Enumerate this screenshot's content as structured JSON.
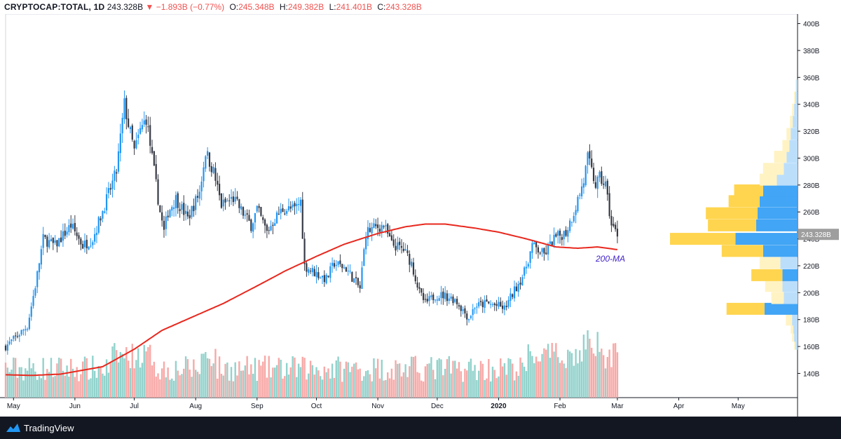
{
  "header": {
    "symbol": "CRYPTOCAP:TOTAL, 1D",
    "last": "243.328B",
    "arrow": "▼",
    "change": "−1.893B (−0.77%)",
    "o_label": "O:",
    "o": "245.348B",
    "h_label": "H:",
    "h": "249.382B",
    "l_label": "L:",
    "l": "241.401B",
    "c_label": "C:",
    "c": "243.328B"
  },
  "footer": {
    "brand": "TradingView",
    "logo": "tradingview-logo-icon"
  },
  "colors": {
    "up": "#2196f3",
    "down": "#363a45",
    "ma": "#e8281e",
    "vol_up": "#92d2cc",
    "vol_down": "#f7a9a7",
    "vp_up": "#42a5f5",
    "vp_down": "#ffd54f",
    "vp_up_light": "#bbdefb",
    "vp_down_light": "#fff3c4",
    "price_tag": "#9e9e9e"
  },
  "chart_data": {
    "type": "candlestick",
    "y_unit": "B",
    "ylim": [
      122,
      405
    ],
    "yticks": [
      "140B",
      "160B",
      "180B",
      "200B",
      "220B",
      "240B",
      "260B",
      "280B",
      "300B",
      "320B",
      "340B",
      "360B",
      "380B",
      "400B"
    ],
    "xticks": [
      "May",
      "Jun",
      "Jul",
      "Aug",
      "Sep",
      "Oct",
      "Nov",
      "Dec",
      "2020",
      "Feb",
      "Mar",
      "Apr",
      "May"
    ],
    "x_range": [
      "2019-04-27",
      "2020-05-31"
    ],
    "last_price_label": "243.328B",
    "annotation": "200-MA",
    "price_anchors": [
      [
        "2019-04-27",
        160
      ],
      [
        "2019-05-08",
        175
      ],
      [
        "2019-05-12",
        205
      ],
      [
        "2019-05-16",
        240
      ],
      [
        "2019-05-22",
        235
      ],
      [
        "2019-05-30",
        250
      ],
      [
        "2019-06-05",
        235
      ],
      [
        "2019-06-10",
        240
      ],
      [
        "2019-06-16",
        265
      ],
      [
        "2019-06-22",
        290
      ],
      [
        "2019-06-26",
        340
      ],
      [
        "2019-06-28",
        325
      ],
      [
        "2019-07-01",
        305
      ],
      [
        "2019-07-04",
        320
      ],
      [
        "2019-07-07",
        330
      ],
      [
        "2019-07-09",
        310
      ],
      [
        "2019-07-14",
        260
      ],
      [
        "2019-07-16",
        245
      ],
      [
        "2019-07-18",
        260
      ],
      [
        "2019-07-22",
        270
      ],
      [
        "2019-07-28",
        255
      ],
      [
        "2019-08-03",
        275
      ],
      [
        "2019-08-06",
        305
      ],
      [
        "2019-08-10",
        290
      ],
      [
        "2019-08-14",
        265
      ],
      [
        "2019-08-20",
        270
      ],
      [
        "2019-08-29",
        250
      ],
      [
        "2019-09-01",
        262
      ],
      [
        "2019-09-06",
        245
      ],
      [
        "2019-09-10",
        255
      ],
      [
        "2019-09-14",
        262
      ],
      [
        "2019-09-20",
        262
      ],
      [
        "2019-09-23",
        268
      ],
      [
        "2019-09-25",
        220
      ],
      [
        "2019-09-30",
        215
      ],
      [
        "2019-10-06",
        210
      ],
      [
        "2019-10-10",
        222
      ],
      [
        "2019-10-16",
        218
      ],
      [
        "2019-10-23",
        203
      ],
      [
        "2019-10-26",
        245
      ],
      [
        "2019-10-30",
        248
      ],
      [
        "2019-11-04",
        250
      ],
      [
        "2019-11-08",
        236
      ],
      [
        "2019-11-14",
        232
      ],
      [
        "2019-11-18",
        222
      ],
      [
        "2019-11-22",
        200
      ],
      [
        "2019-11-25",
        192
      ],
      [
        "2019-11-30",
        198
      ],
      [
        "2019-12-04",
        198
      ],
      [
        "2019-12-10",
        195
      ],
      [
        "2019-12-17",
        181
      ],
      [
        "2019-12-20",
        190
      ],
      [
        "2019-12-26",
        192
      ],
      [
        "2020-01-01",
        190
      ],
      [
        "2020-01-04",
        188
      ],
      [
        "2020-01-08",
        199
      ],
      [
        "2020-01-14",
        215
      ],
      [
        "2020-01-18",
        235
      ],
      [
        "2020-01-24",
        228
      ],
      [
        "2020-01-29",
        240
      ],
      [
        "2020-02-04",
        245
      ],
      [
        "2020-02-08",
        260
      ],
      [
        "2020-02-13",
        283
      ],
      [
        "2020-02-15",
        300
      ],
      [
        "2020-02-19",
        280
      ],
      [
        "2020-02-21",
        285
      ],
      [
        "2020-02-24",
        280
      ],
      [
        "2020-02-27",
        250
      ],
      [
        "2020-03-01",
        243.3
      ]
    ],
    "ma_anchors": [
      [
        "2019-04-27",
        139
      ],
      [
        "2019-05-10",
        138.5
      ],
      [
        "2019-05-25",
        139.5
      ],
      [
        "2019-06-15",
        145
      ],
      [
        "2019-07-01",
        158
      ],
      [
        "2019-07-15",
        172
      ],
      [
        "2019-08-01",
        183
      ],
      [
        "2019-08-15",
        192
      ],
      [
        "2019-09-01",
        205
      ],
      [
        "2019-09-15",
        216
      ],
      [
        "2019-10-01",
        227
      ],
      [
        "2019-10-15",
        236
      ],
      [
        "2019-11-01",
        244
      ],
      [
        "2019-11-15",
        249
      ],
      [
        "2019-11-25",
        251
      ],
      [
        "2019-12-05",
        251
      ],
      [
        "2019-12-20",
        248
      ],
      [
        "2020-01-01",
        245
      ],
      [
        "2020-01-15",
        240
      ],
      [
        "2020-01-30",
        234
      ],
      [
        "2020-02-10",
        233
      ],
      [
        "2020-02-20",
        234
      ],
      [
        "2020-03-01",
        232
      ]
    ],
    "volume_profile": [
      {
        "price": 162,
        "up": 3,
        "down": 2
      },
      {
        "price": 168,
        "up": 5,
        "down": 3
      },
      {
        "price": 174,
        "up": 6,
        "down": 4
      },
      {
        "price": 180,
        "up": 8,
        "down": 9
      },
      {
        "price": 188,
        "up": 48,
        "down": 55
      },
      {
        "price": 196,
        "up": 20,
        "down": 18
      },
      {
        "price": 205,
        "up": 22,
        "down": 25
      },
      {
        "price": 213,
        "up": 22,
        "down": 45
      },
      {
        "price": 222,
        "up": 25,
        "down": 30
      },
      {
        "price": 231,
        "up": 50,
        "down": 60
      },
      {
        "price": 240,
        "up": 90,
        "down": 95
      },
      {
        "price": 250,
        "up": 60,
        "down": 70
      },
      {
        "price": 259,
        "up": 58,
        "down": 75
      },
      {
        "price": 268,
        "up": 55,
        "down": 45
      },
      {
        "price": 276,
        "up": 50,
        "down": 42
      },
      {
        "price": 284,
        "up": 30,
        "down": 25
      },
      {
        "price": 292,
        "up": 20,
        "down": 30
      },
      {
        "price": 301,
        "up": 16,
        "down": 18
      },
      {
        "price": 309,
        "up": 12,
        "down": 10
      },
      {
        "price": 318,
        "up": 10,
        "down": 6
      },
      {
        "price": 327,
        "up": 7,
        "down": 4
      },
      {
        "price": 336,
        "up": 5,
        "down": 3
      },
      {
        "price": 345,
        "up": 3,
        "down": 2
      },
      {
        "price": 354,
        "up": 2,
        "down": 1
      }
    ]
  }
}
